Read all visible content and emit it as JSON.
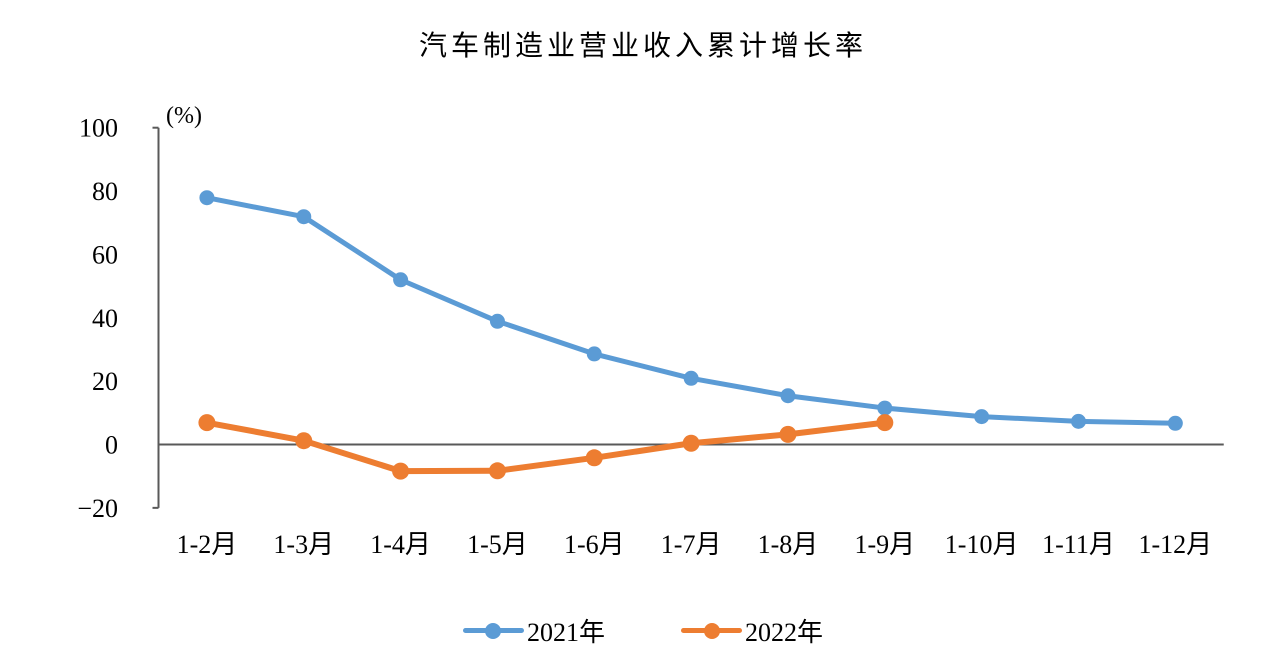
{
  "chart_data": {
    "type": "line",
    "title": "汽车制造业营业收入累计增长率",
    "unit_label": "(%)",
    "categories": [
      "1-2月",
      "1-3月",
      "1-4月",
      "1-5月",
      "1-6月",
      "1-7月",
      "1-8月",
      "1-9月",
      "1-10月",
      "1-11月",
      "1-12月"
    ],
    "y_ticks": [
      {
        "value": 100,
        "label": "100"
      },
      {
        "value": 80,
        "label": "80"
      },
      {
        "value": 60,
        "label": "60"
      },
      {
        "value": 40,
        "label": "40"
      },
      {
        "value": 20,
        "label": "20"
      },
      {
        "value": 0,
        "label": "0"
      },
      {
        "value": -20,
        "label": "−20"
      }
    ],
    "ylim": [
      -20,
      100
    ],
    "grid": false,
    "legend_position": "bottom",
    "axis_color": "#595959",
    "text_color": "#000000",
    "series": [
      {
        "name": "2021年",
        "color": "#5B9BD5",
        "values": [
          77.9,
          71.9,
          52.0,
          38.9,
          28.6,
          20.9,
          15.4,
          11.5,
          8.8,
          7.3,
          6.7
        ]
      },
      {
        "name": "2022年",
        "color": "#ED7D31",
        "values": [
          6.9,
          1.2,
          -8.4,
          -8.3,
          -4.2,
          0.4,
          3.2,
          6.9
        ]
      }
    ]
  }
}
